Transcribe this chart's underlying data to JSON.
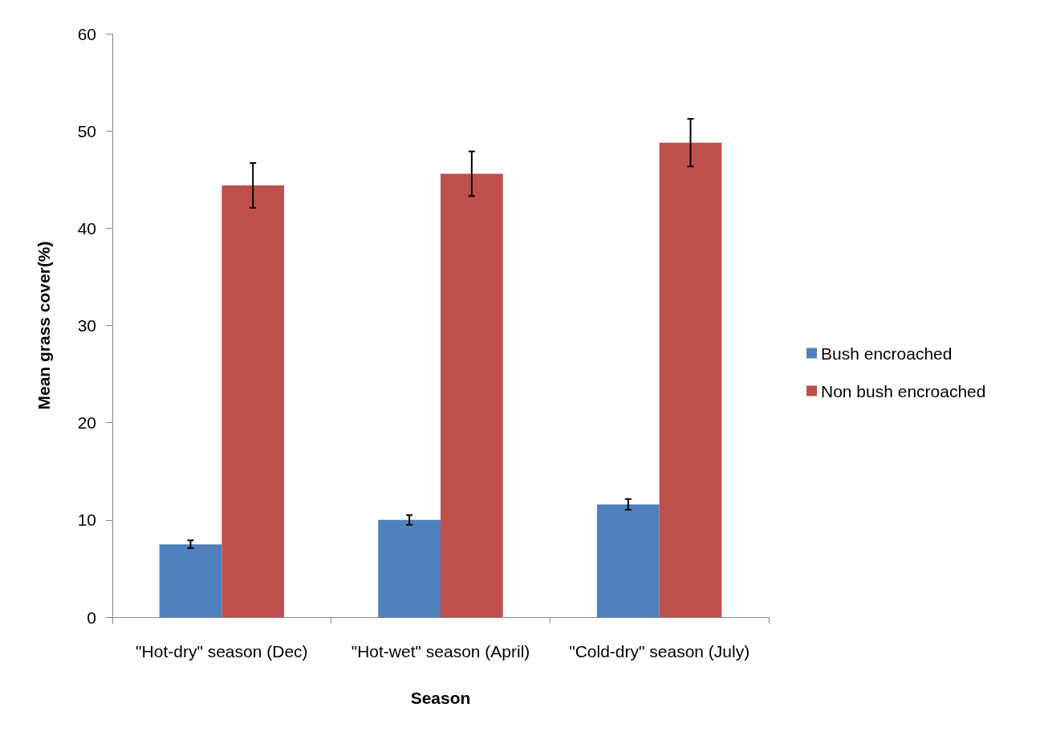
{
  "chart_data": {
    "type": "bar",
    "xlabel": "Season",
    "ylabel": "Mean grass cover(%)",
    "categories": [
      "\"Hot-dry\" season (Dec)",
      "\"Hot-wet\" season (April)",
      "\"Cold-dry\" season (July)"
    ],
    "series": [
      {
        "name": "Bush encroached",
        "color": "#4f81bd",
        "values": [
          7.5,
          10.0,
          11.6
        ],
        "errors": [
          0.4,
          0.5,
          0.55
        ]
      },
      {
        "name": "Non bush encroached",
        "color": "#c0504d",
        "values": [
          44.4,
          45.6,
          48.8
        ],
        "errors": [
          2.3,
          2.3,
          2.45
        ]
      }
    ],
    "ylim": [
      0,
      60
    ],
    "yticks": [
      0,
      10,
      20,
      30,
      40,
      50,
      60
    ],
    "grid": false,
    "legend": "right"
  }
}
